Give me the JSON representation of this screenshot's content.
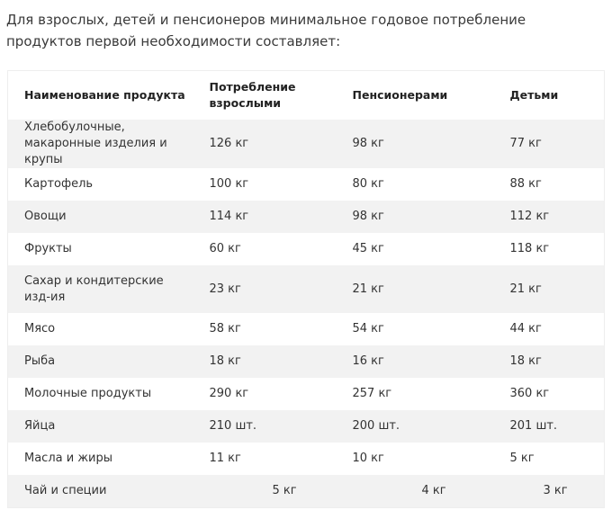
{
  "intro": "Для взрослых, детей и пенсионеров минимальное годовое потребление продуктов первой необходимости составляет:",
  "table": {
    "columns": [
      "Наименование продукта",
      "Потребление взрослыми",
      "Пенсионерами",
      "Детьми"
    ],
    "rows": [
      [
        "Хлебобулочные, макаронные изделия и крупы",
        "126 кг",
        "98 кг",
        "77 кг"
      ],
      [
        "Картофель",
        "100 кг",
        "80 кг",
        "88 кг"
      ],
      [
        "Овощи",
        "114 кг",
        "98 кг",
        "112 кг"
      ],
      [
        "Фрукты",
        "60 кг",
        "45 кг",
        "118 кг"
      ],
      [
        "Сахар и кондитерские изд-ия",
        "23 кг",
        "21 кг",
        "21 кг"
      ],
      [
        "Мясо",
        "58 кг",
        "54 кг",
        "44 кг"
      ],
      [
        "Рыба",
        "18 кг",
        "16 кг",
        "18 кг"
      ],
      [
        "Молочные продукты",
        "290 кг",
        "257 кг",
        "360 кг"
      ],
      [
        "Яйца",
        "210 шт.",
        "200 шт.",
        "201 шт."
      ],
      [
        "Масла и жиры",
        "11 кг",
        "10 кг",
        "5 кг"
      ],
      [
        "Чай и специи",
        "5 кг",
        "4 кг",
        "3 кг"
      ]
    ]
  }
}
